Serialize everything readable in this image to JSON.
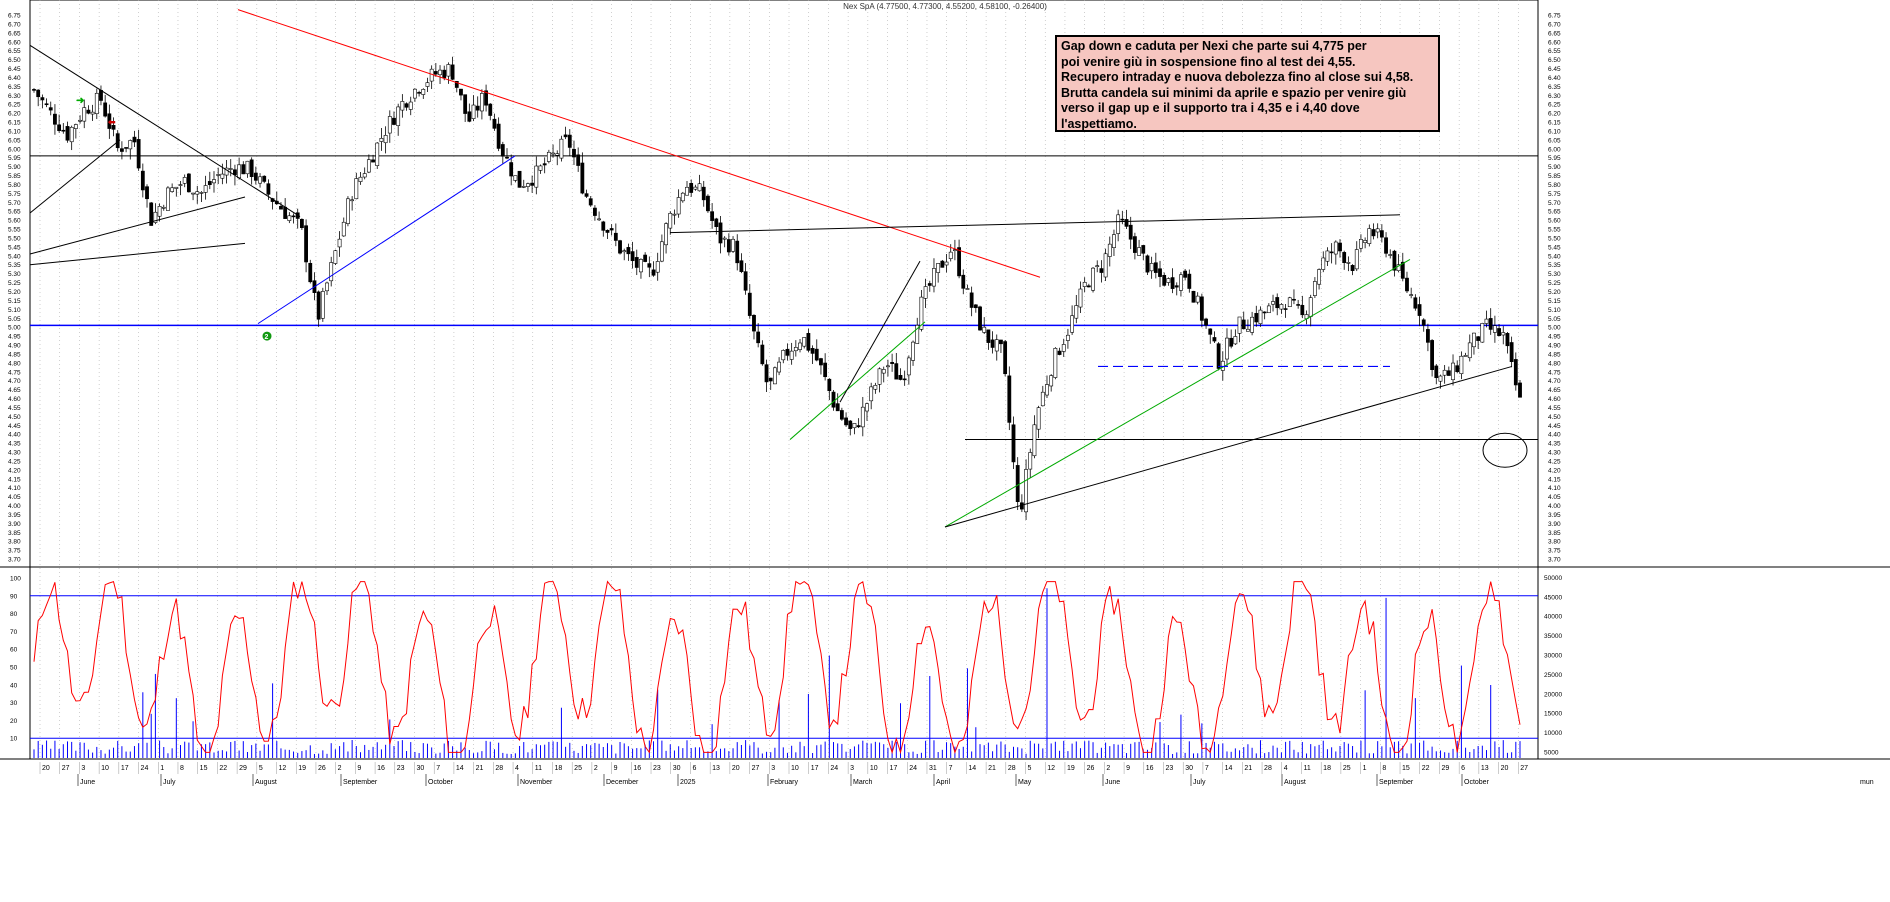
{
  "header": {
    "title": "Nex SpA (4.77500, 4.77300, 4.55200, 4.58100, -0.26400)"
  },
  "annotation": {
    "lines": [
      "Gap down e caduta per Nexi che parte sui 4,775 per",
      "poi venire giù in sospensione fino al test dei 4,55.",
      "Recupero intraday e nuova debolezza fino al close sui 4,58.",
      "Brutta candela sui minimi da aprile e spazio per venire giù",
      "verso il gap up e il supporto tra i 4,35 e i 4,40 dove",
      "l'aspettiamo."
    ]
  },
  "colors": {
    "candle": "#000000",
    "blue_line": "#0000ff",
    "red_line": "#ff0000",
    "green_line": "#00aa00",
    "oscillator": "#ff0000",
    "volume": "#0000ff",
    "grid": "#b0b0b0",
    "note_bg": "#f6c6c0"
  },
  "chart_data": {
    "type": "candlestick",
    "price_axis": {
      "min": 3.65,
      "max": 6.75,
      "step": 0.05,
      "labels": [
        "3.70",
        "3.75",
        "3.80",
        "3.85",
        "3.90",
        "3.95",
        "4.00",
        "4.05",
        "4.10",
        "4.15",
        "4.20",
        "4.25",
        "4.30",
        "4.35",
        "4.40",
        "4.45",
        "4.50",
        "4.55",
        "4.60",
        "4.65",
        "4.70",
        "4.75",
        "4.80",
        "4.85",
        "4.90",
        "4.95",
        "5.00",
        "5.05",
        "5.10",
        "5.15",
        "5.20",
        "5.25",
        "5.30",
        "5.35",
        "5.40",
        "5.45",
        "5.50",
        "5.55",
        "5.60",
        "5.65",
        "5.70",
        "5.75",
        "5.80",
        "5.85",
        "5.90",
        "5.95",
        "6.00",
        "6.05",
        "6.10",
        "6.15",
        "6.20",
        "6.25",
        "6.30",
        "6.35",
        "6.40",
        "6.45",
        "6.50",
        "6.55",
        "6.60",
        "6.65",
        "6.70",
        "6.75"
      ]
    },
    "oscillator_axis": {
      "min": 0,
      "max": 100,
      "labels": [
        "10",
        "20",
        "30",
        "40",
        "50",
        "60",
        "70",
        "80",
        "90",
        "100"
      ],
      "levels": [
        10,
        90
      ]
    },
    "volume_axis": {
      "labels": [
        "5000",
        "10000",
        "15000",
        "20000",
        "25000",
        "30000",
        "35000",
        "40000",
        "45000",
        "50000"
      ]
    },
    "x_axis": {
      "day_labels": [
        "20",
        "27",
        "3",
        "10",
        "17",
        "24",
        "1",
        "8",
        "15",
        "22",
        "29",
        "5",
        "12",
        "19",
        "26",
        "2",
        "9",
        "16",
        "23",
        "30",
        "7",
        "14",
        "21",
        "28",
        "4",
        "11",
        "18",
        "25",
        "2",
        "9",
        "16",
        "23",
        "30",
        "6",
        "13",
        "20",
        "27",
        "3",
        "10",
        "17",
        "24",
        "3",
        "10",
        "17",
        "24",
        "31",
        "7",
        "14",
        "21",
        "28",
        "5",
        "12",
        "19",
        "26",
        "2",
        "9",
        "16",
        "23",
        "30",
        "7",
        "14",
        "21",
        "28",
        "4",
        "11",
        "18",
        "25",
        "1",
        "8",
        "15",
        "22",
        "29",
        "6",
        "13",
        "20",
        "27"
      ],
      "month_labels": [
        "June",
        "July",
        "August",
        "September",
        "October",
        "November",
        "December",
        "2025",
        "February",
        "March",
        "April",
        "May",
        "June",
        "July",
        "August",
        "September",
        "October"
      ],
      "extra_label": "mun"
    },
    "ohlc_path": [
      6.33,
      6.2,
      6.08,
      6.22,
      6.28,
      6.0,
      6.05,
      5.6,
      5.75,
      5.82,
      5.75,
      5.85,
      5.9,
      5.88,
      5.75,
      5.65,
      5.55,
      5.05,
      5.4,
      5.75,
      5.92,
      6.1,
      6.25,
      6.35,
      6.42,
      6.45,
      6.15,
      6.3,
      6.0,
      5.8,
      5.85,
      5.95,
      6.05,
      5.75,
      5.6,
      5.45,
      5.35,
      5.3,
      5.6,
      5.8,
      5.75,
      5.5,
      5.45,
      5.0,
      4.65,
      4.85,
      4.95,
      4.8,
      4.55,
      4.4,
      4.6,
      4.8,
      4.7,
      5.1,
      5.3,
      5.45,
      5.15,
      4.95,
      4.85,
      3.92,
      4.5,
      4.8,
      5.0,
      5.25,
      5.35,
      5.6,
      5.45,
      5.3,
      5.25,
      5.3,
      5.05,
      4.8,
      5.0,
      5.05,
      5.1,
      5.15,
      5.05,
      5.35,
      5.45,
      5.35,
      5.55,
      5.45,
      5.25,
      5.1,
      4.7,
      4.75,
      4.9,
      5.0,
      4.95,
      4.58
    ],
    "levels": [
      {
        "name": "blue-horizontal",
        "value": 5.01
      },
      {
        "name": "black-resistance",
        "value": 5.96
      },
      {
        "name": "black-support",
        "value": 4.37
      }
    ],
    "grid": true
  }
}
